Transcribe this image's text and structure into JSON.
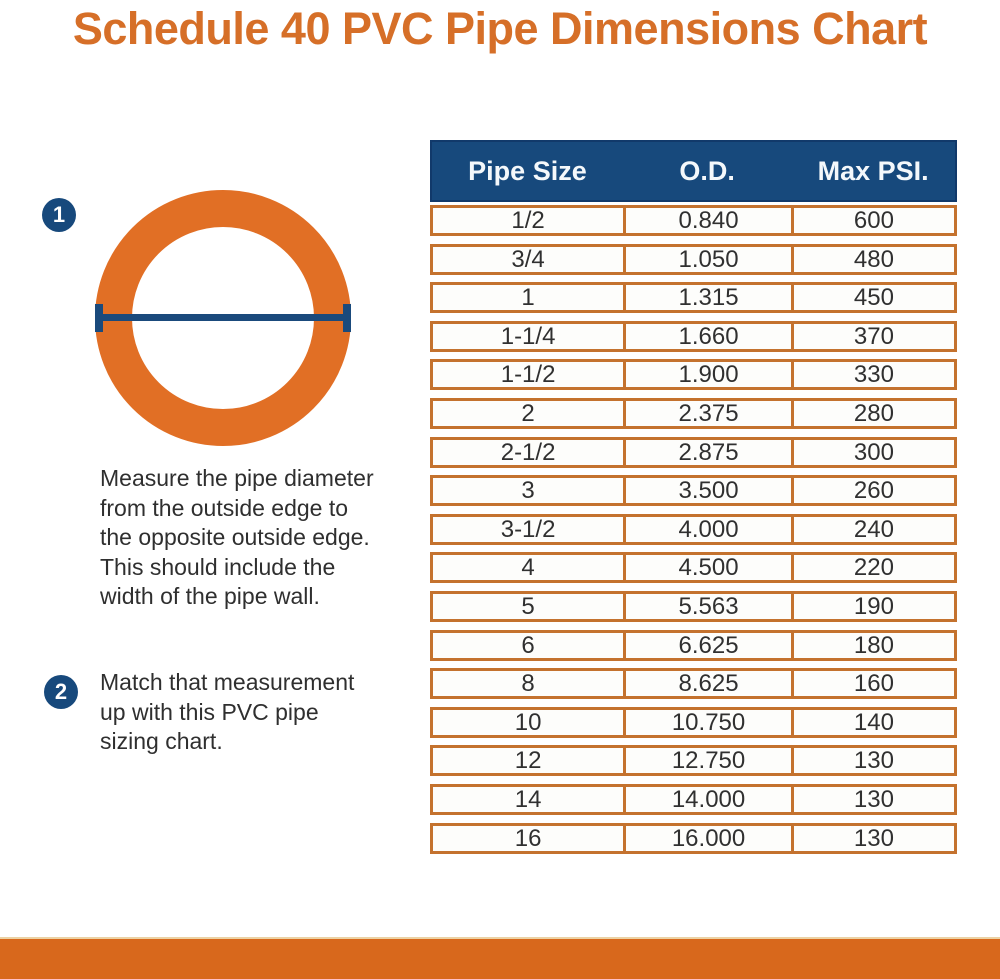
{
  "title": "Schedule 40 PVC Pipe Dimensions Chart",
  "diagram": {
    "step1_badge": "1",
    "step2_badge": "2",
    "step1_text": "Measure the pipe diameter\nfrom the outside edge to\nthe opposite outside edge.\nThis  should include the\nwidth of the pipe wall.",
    "step2_text": "Match that measurement\nup with this PVC pipe\nsizing chart."
  },
  "chart_data": {
    "type": "table",
    "title": "Schedule 40 PVC Pipe Dimensions Chart",
    "columns": [
      "Pipe Size",
      "O.D.",
      "Max PSI."
    ],
    "rows": [
      [
        "1/2",
        "0.840",
        "600"
      ],
      [
        "3/4",
        "1.050",
        "480"
      ],
      [
        "1",
        "1.315",
        "450"
      ],
      [
        "1-1/4",
        "1.660",
        "370"
      ],
      [
        "1-1/2",
        "1.900",
        "330"
      ],
      [
        "2",
        "2.375",
        "280"
      ],
      [
        "2-1/2",
        "2.875",
        "300"
      ],
      [
        "3",
        "3.500",
        "260"
      ],
      [
        "3-1/2",
        "4.000",
        "240"
      ],
      [
        "4",
        "4.500",
        "220"
      ],
      [
        "5",
        "5.563",
        "190"
      ],
      [
        "6",
        "6.625",
        "180"
      ],
      [
        "8",
        "8.625",
        "160"
      ],
      [
        "10",
        "10.750",
        "140"
      ],
      [
        "12",
        "12.750",
        "130"
      ],
      [
        "14",
        "14.000",
        "130"
      ],
      [
        "16",
        "16.000",
        "130"
      ]
    ]
  },
  "colors": {
    "title_orange": "#d66f28",
    "header_navy": "#17497c",
    "table_border_orange": "#c4722e",
    "pipe_ring_orange": "#e16f25",
    "navy": "#1a4a7c",
    "footer_orange": "#d8681c"
  }
}
